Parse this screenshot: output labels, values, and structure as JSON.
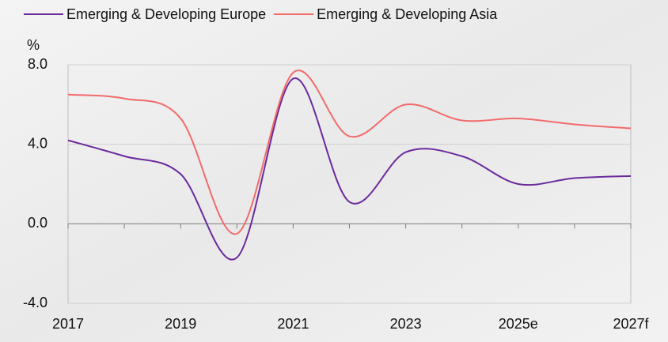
{
  "chart_data": {
    "type": "line",
    "y_label": "%",
    "categories": [
      "2017",
      null,
      "2019",
      null,
      "2021",
      null,
      "2023",
      null,
      "2025e",
      null,
      "2027f"
    ],
    "series": [
      {
        "name": "Emerging & Developing Europe",
        "color": "#6a2a9c",
        "values": [
          4.2,
          3.4,
          2.5,
          -1.7,
          7.3,
          1.1,
          3.6,
          3.4,
          2.0,
          2.3,
          2.4
        ]
      },
      {
        "name": "Emerging & Developing Asia",
        "color": "#f26b6b",
        "values": [
          6.5,
          6.3,
          5.3,
          -0.5,
          7.6,
          4.4,
          6.0,
          5.2,
          5.3,
          5.0,
          4.8
        ]
      }
    ],
    "ylim": [
      -4,
      8
    ],
    "yticks": [
      {
        "value": -4,
        "label": "-4.0"
      },
      {
        "value": 0,
        "label": "0.0"
      },
      {
        "value": 4,
        "label": "4.0"
      },
      {
        "value": 8,
        "label": "8.0"
      }
    ],
    "grid": true,
    "legend": "top"
  }
}
